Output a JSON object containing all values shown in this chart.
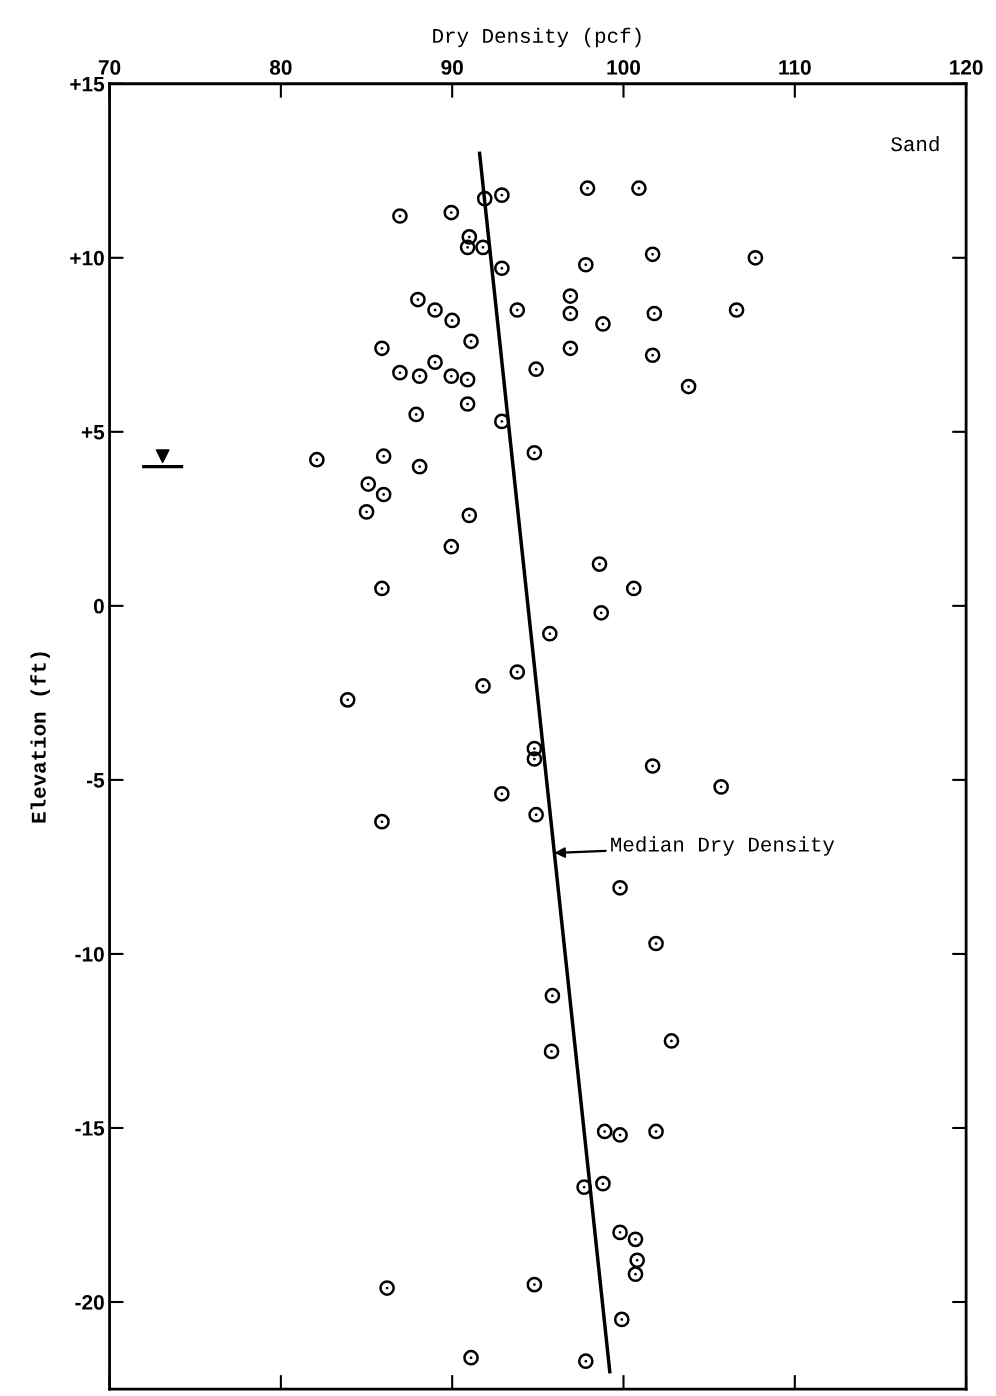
{
  "chart_data": {
    "type": "scatter",
    "xlabel": "Dry Density (pcf)",
    "ylabel": "Elevation (ft)",
    "xlim": [
      70,
      120
    ],
    "xticks": [
      70,
      80,
      90,
      100,
      110,
      120
    ],
    "ylim": [
      -22.5,
      15
    ],
    "yticks": [
      {
        "value": 15,
        "label": "+15"
      },
      {
        "value": 10,
        "label": "+10"
      },
      {
        "value": 5,
        "label": "+5"
      },
      0,
      {
        "value": -5,
        "label": "-5"
      },
      {
        "value": -10,
        "label": "-10"
      },
      {
        "value": -15,
        "label": "-15"
      },
      {
        "value": -20,
        "label": "-20"
      }
    ],
    "grid": false,
    "annotations": [
      "Sand",
      {
        "text": "Median Dry Density",
        "x": 95.96,
        "y": -7.1
      }
    ],
    "series": [
      {
        "color": "#000000",
        "marker": "circle",
        "x": [
          86.95,
          89.95,
          91.9,
          92.9,
          97.9,
          100.9,
          91.0,
          90.9,
          91.8,
          92.9,
          97.8,
          101.7,
          107.7,
          88.0,
          89.0,
          90.0,
          93.8,
          96.9,
          96.9,
          98.8,
          101.8,
          106.6,
          85.9,
          91.1,
          89.0,
          86.95,
          88.1,
          89.95,
          90.9,
          94.9,
          96.9,
          101.7,
          103.8,
          87.9,
          90.9,
          92.9,
          94.8,
          82.1,
          86.0,
          88.1,
          85.1,
          86.0,
          85.0,
          91.0,
          89.95,
          98.6,
          100.6,
          85.9,
          98.7,
          95.7,
          93.8,
          91.8,
          83.9,
          94.8,
          94.8,
          101.7,
          105.7,
          92.9,
          94.9,
          85.9,
          99.8,
          101.9,
          95.85,
          102.8,
          95.8,
          98.9,
          99.8,
          101.9,
          97.7,
          98.8,
          99.8,
          100.7,
          100.8,
          100.7,
          86.2,
          94.8,
          99.9,
          91.1,
          97.8
        ],
        "values": [
          11.2,
          11.3,
          11.7,
          11.8,
          12.0,
          12.0,
          10.6,
          10.3,
          10.3,
          9.7,
          9.8,
          10.1,
          10.0,
          8.8,
          8.5,
          8.2,
          8.5,
          8.9,
          8.4,
          8.1,
          8.4,
          8.5,
          7.4,
          7.6,
          7.0,
          6.7,
          6.6,
          6.6,
          6.5,
          6.8,
          7.4,
          7.2,
          6.3,
          5.5,
          5.8,
          5.3,
          4.4,
          4.2,
          4.3,
          4.0,
          3.5,
          3.2,
          2.7,
          2.6,
          1.7,
          1.2,
          0.5,
          0.5,
          -0.2,
          -0.8,
          -1.9,
          -2.3,
          -2.7,
          -4.1,
          -4.4,
          -4.6,
          -5.2,
          -5.4,
          -6.0,
          -6.2,
          -8.1,
          -9.7,
          -11.2,
          -12.5,
          -12.8,
          -15.1,
          -15.2,
          -15.1,
          -16.7,
          -16.6,
          -18.0,
          -18.2,
          -18.8,
          -19.2,
          -19.6,
          -19.5,
          -20.5,
          -21.6,
          -21.7
        ]
      },
      {
        "type": "line",
        "color": "#000000",
        "marker": "none",
        "line_style": "solid",
        "x": [
          91.6,
          99.2
        ],
        "values": [
          13.0,
          -22.0
        ]
      },
      {
        "type": "line",
        "color": "#000000",
        "marker": "none",
        "line_style": "solid",
        "x": [
          72.0,
          74.2
        ],
        "values": [
          4.0,
          4.0
        ]
      },
      {
        "type": "scatter",
        "color": "#000000",
        "marker": "triangle_down",
        "x": [
          73.1
        ],
        "values": [
          4.3
        ]
      }
    ]
  }
}
